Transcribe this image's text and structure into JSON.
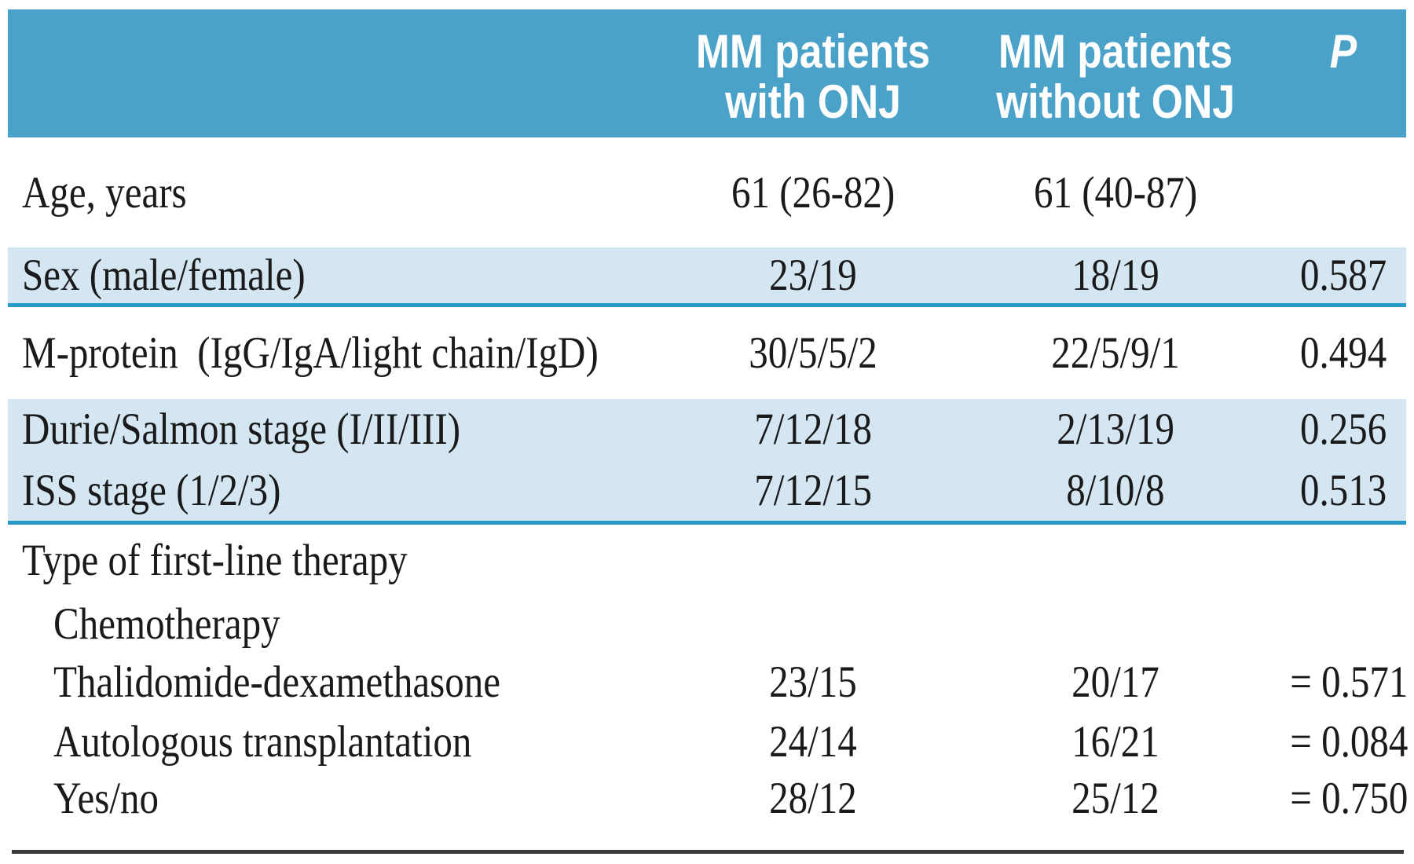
{
  "table": {
    "header": {
      "col_with_onj": {
        "line1": "MM patients",
        "line2": "with ONJ"
      },
      "col_without_onj": {
        "line1": "MM patients",
        "line2": "without ONJ"
      },
      "col_p": "P"
    },
    "rows": [
      {
        "label": "Age, years",
        "with_onj": "61 (26-82)",
        "without_onj": "61 (40-87)",
        "p": ""
      },
      {
        "label": "Sex (male/female)",
        "with_onj": "23/19",
        "without_onj": "18/19",
        "p": "0.587"
      },
      {
        "label": "M-protein  (IgG/IgA/light chain/IgD)",
        "with_onj": "30/5/5/2",
        "without_onj": "22/5/9/1",
        "p": "0.494"
      },
      {
        "label": "Durie/Salmon stage (I/II/III)",
        "with_onj": "7/12/18",
        "without_onj": "2/13/19",
        "p": "0.256"
      },
      {
        "label": "ISS stage (1/2/3)",
        "with_onj": "7/12/15",
        "without_onj": "8/10/8",
        "p": "0.513"
      },
      {
        "label": "Type of first-line therapy",
        "with_onj": "",
        "without_onj": "",
        "p": ""
      },
      {
        "label": "Chemotherapy",
        "with_onj": "",
        "without_onj": "",
        "p": ""
      },
      {
        "label": "Thalidomide-dexamethasone",
        "with_onj": "23/15",
        "without_onj": "20/17",
        "p": "= 0.571"
      },
      {
        "label": "Autologous transplantation",
        "with_onj": "24/14",
        "without_onj": "16/21",
        "p": "= 0.084"
      },
      {
        "label": "Yes/no",
        "with_onj": "28/12",
        "without_onj": "25/12",
        "p": "= 0.750"
      }
    ]
  },
  "colors": {
    "header_background": "#4ba2c9",
    "header_text": "#ffffff",
    "row_highlight": "#d3e6f1",
    "divider_teal": "#2a9ac8",
    "bottom_rule": "#3a3a3c",
    "body_text": "#1a1a1a",
    "page_background": "#ffffff"
  }
}
